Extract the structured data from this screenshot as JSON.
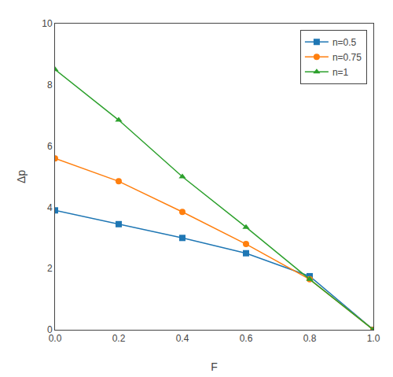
{
  "chart_data": {
    "type": "line",
    "xlabel": "F",
    "ylabel": "Δp",
    "x": [
      0.0,
      0.2,
      0.4,
      0.6,
      0.8,
      1.0
    ],
    "series": [
      {
        "name": "n=0.5",
        "values": [
          3.9,
          3.45,
          3.0,
          2.5,
          1.75,
          0.0
        ],
        "marker": "square"
      },
      {
        "name": "n=0.75",
        "values": [
          5.6,
          4.85,
          3.85,
          2.8,
          1.65,
          0.0
        ],
        "marker": "circle"
      },
      {
        "name": "n=1",
        "values": [
          8.5,
          6.85,
          5.0,
          3.35,
          1.65,
          0.0
        ],
        "marker": "triangle"
      }
    ],
    "xlim": [
      0.0,
      1.0
    ],
    "ylim": [
      0,
      10
    ],
    "xticks": [
      {
        "value": 0.0,
        "label": "0.0"
      },
      0.2,
      0.4,
      0.6,
      0.8,
      {
        "value": 1.0,
        "label": "1.0"
      }
    ],
    "yticks": [
      0,
      2,
      4,
      6,
      8,
      10
    ],
    "grid": false,
    "legend": "upper right"
  }
}
